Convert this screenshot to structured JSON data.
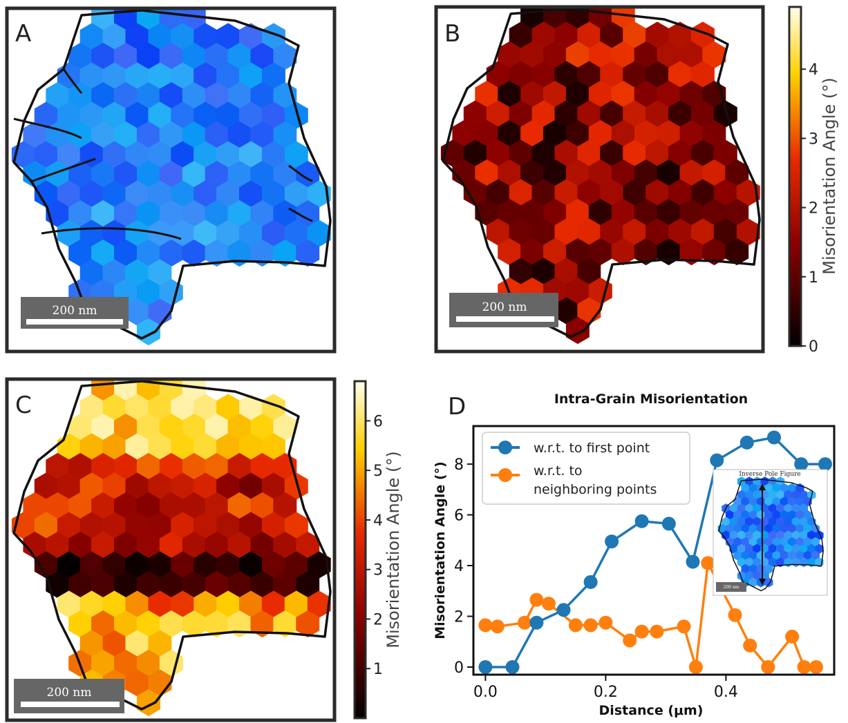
{
  "panels": {
    "A": {
      "letter": "A",
      "scale_bar": "200 nm"
    },
    "B": {
      "letter": "B",
      "scale_bar": "200 nm",
      "colorbar": {
        "label": "Misorientation Angle (°)",
        "ticks": [
          "0",
          "1",
          "2",
          "3",
          "4"
        ],
        "max": 4.9
      }
    },
    "C": {
      "letter": "C",
      "scale_bar": "200 nm",
      "colorbar": {
        "label": "Misorientation Angle (°)",
        "ticks": [
          "1",
          "2",
          "3",
          "4",
          "5",
          "6"
        ],
        "max": 6.8
      }
    },
    "D": {
      "letter": "D"
    }
  },
  "colors": {
    "blue_series": "#1f77b4",
    "orange_series": "#ff7f0e",
    "frame": "#2b2b2b"
  },
  "chart_data": [
    {
      "panel": "D",
      "type": "line",
      "title": "Intra-Grain Misorientation",
      "xlabel": "Distance (μm)",
      "ylabel": "Misorientation Angle (°)",
      "xlim": [
        -0.02,
        0.58
      ],
      "ylim": [
        -0.3,
        9.5
      ],
      "xticks": [
        "0.0",
        "0.2",
        "0.4"
      ],
      "yticks": [
        "0",
        "2",
        "4",
        "6",
        "8"
      ],
      "legend_position": "top-left",
      "series": [
        {
          "name": "w.r.t. to first point",
          "color": "#1f77b4",
          "x": [
            0.0,
            0.045,
            0.085,
            0.13,
            0.175,
            0.21,
            0.26,
            0.305,
            0.345,
            0.385,
            0.435,
            0.48,
            0.525,
            0.565
          ],
          "y": [
            0.0,
            0.0,
            1.75,
            2.25,
            3.35,
            4.95,
            5.75,
            5.65,
            4.15,
            8.15,
            8.85,
            9.05,
            8.0,
            8.0
          ]
        },
        {
          "name": "w.r.t. to neighboring points",
          "color": "#ff7f0e",
          "x": [
            0.0,
            0.02,
            0.065,
            0.085,
            0.105,
            0.15,
            0.175,
            0.2,
            0.24,
            0.26,
            0.285,
            0.33,
            0.35,
            0.37,
            0.415,
            0.44,
            0.47,
            0.51,
            0.53,
            0.55
          ],
          "y": [
            1.65,
            1.6,
            1.75,
            2.65,
            2.5,
            1.65,
            1.65,
            1.75,
            1.05,
            1.4,
            1.4,
            1.6,
            0.0,
            4.1,
            2.05,
            0.85,
            0.0,
            1.2,
            0.0,
            0.0
          ]
        }
      ]
    }
  ],
  "inset": {
    "title": "Inverse Pole Figure",
    "scale_bar": "200 nm"
  }
}
